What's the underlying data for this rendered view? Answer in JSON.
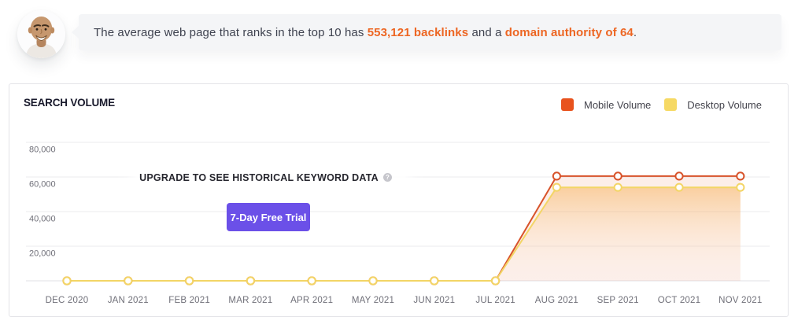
{
  "quote": {
    "avatar": "neil-patel-avatar",
    "text_before": "The average web page that ranks in the top 10 has ",
    "highlight_backlinks": "553,121 backlinks",
    "text_middle": " and a ",
    "highlight_authority": "domain authority of 64",
    "text_after": "."
  },
  "card": {
    "title": "SEARCH VOLUME",
    "legend": [
      {
        "label": "Mobile Volume",
        "color": "#e8521d"
      },
      {
        "label": "Desktop Volume",
        "color": "#f6d964"
      }
    ],
    "overlay": {
      "heading": "UPGRADE TO SEE HISTORICAL KEYWORD DATA",
      "help_icon": "?",
      "button_label": "7-Day Free Trial"
    }
  },
  "chart_data": {
    "type": "line",
    "title": "SEARCH VOLUME",
    "categories": [
      "DEC 2020",
      "JAN 2021",
      "FEB 2021",
      "MAR 2021",
      "APR 2021",
      "MAY 2021",
      "JUN 2021",
      "JUL 2021",
      "AUG 2021",
      "SEP 2021",
      "OCT 2021",
      "NOV 2021"
    ],
    "series": [
      {
        "name": "Mobile Volume",
        "line_color": "#d8532a",
        "fill_color": "rgba(224,85,35,0.10)",
        "values": [
          0,
          0,
          0,
          0,
          0,
          0,
          0,
          0,
          60500,
          60500,
          60500,
          60500
        ]
      },
      {
        "name": "Desktop Volume",
        "line_color": "#f3d566",
        "fill_top": "rgba(247,176,86,0.50)",
        "fill_bottom": "rgba(255,250,244,0.05)",
        "values": [
          0,
          0,
          0,
          0,
          0,
          0,
          0,
          0,
          54000,
          54000,
          54000,
          54000
        ]
      }
    ],
    "y_ticks": [
      {
        "value": 80000,
        "label": "80,000"
      },
      {
        "value": 60000,
        "label": "60,000"
      },
      {
        "value": 40000,
        "label": "40,000"
      },
      {
        "value": 20000,
        "label": "20,000"
      },
      {
        "value": 0,
        "label": ""
      }
    ],
    "ylim": [
      0,
      80000
    ],
    "grid": true,
    "grid_color": "#ebebee",
    "axis_color": "#e2e2e6",
    "tick_color": "#707079",
    "legend_position": "top-right",
    "marker": {
      "radius": 4.6,
      "stroke_width": 2,
      "fill": "#ffffff"
    }
  }
}
